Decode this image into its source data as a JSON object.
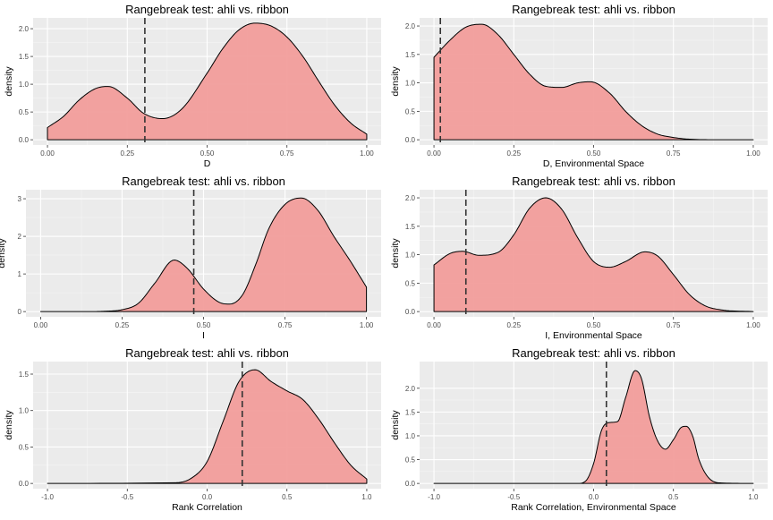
{
  "chart_data": [
    {
      "type": "area",
      "title": "Rangebreak test: ahli vs. ribbon",
      "xlabel": "D",
      "ylabel": "density",
      "xlim": [
        0,
        1
      ],
      "ylim": [
        0,
        2.1
      ],
      "xticks": [
        0,
        0.25,
        0.5,
        0.75,
        1
      ],
      "xtick_labels": [
        "0.00",
        "0.25",
        "0.50",
        "0.75",
        "1.00"
      ],
      "yticks": [
        0,
        0.5,
        1,
        1.5,
        2
      ],
      "ytick_labels": [
        "0.0",
        "0.5",
        "1.0",
        "1.5",
        "2.0"
      ],
      "grid": true,
      "fill_color": "#f29a98",
      "observed_line_x": 0.305,
      "x": [
        0,
        0.05,
        0.1,
        0.15,
        0.19,
        0.25,
        0.3,
        0.36,
        0.42,
        0.5,
        0.55,
        0.6,
        0.65,
        0.7,
        0.75,
        0.8,
        0.85,
        0.9,
        0.95,
        1
      ],
      "density": [
        0.22,
        0.42,
        0.72,
        0.92,
        0.96,
        0.75,
        0.48,
        0.38,
        0.55,
        1.2,
        1.65,
        1.98,
        2.1,
        2.05,
        1.85,
        1.5,
        1.05,
        0.62,
        0.3,
        0.1
      ]
    },
    {
      "type": "area",
      "title": "Rangebreak test: ahli vs. ribbon",
      "xlabel": "D, Environmental Space",
      "ylabel": "density",
      "xlim": [
        0,
        1
      ],
      "ylim": [
        0,
        2.05
      ],
      "xticks": [
        0,
        0.25,
        0.5,
        0.75,
        1
      ],
      "xtick_labels": [
        "0.00",
        "0.25",
        "0.50",
        "0.75",
        "1.00"
      ],
      "yticks": [
        0,
        0.5,
        1,
        1.5,
        2
      ],
      "ytick_labels": [
        "0.0",
        "0.5",
        "1.0",
        "1.5",
        "2.0"
      ],
      "grid": true,
      "fill_color": "#f29a98",
      "observed_line_x": 0.02,
      "x": [
        0,
        0.05,
        0.1,
        0.15,
        0.2,
        0.25,
        0.3,
        0.35,
        0.4,
        0.45,
        0.49,
        0.55,
        0.6,
        0.65,
        0.7,
        0.75,
        0.8,
        0.9,
        1
      ],
      "density": [
        1.45,
        1.75,
        1.98,
        2.03,
        1.85,
        1.5,
        1.15,
        0.94,
        0.92,
        1.0,
        1.02,
        0.82,
        0.5,
        0.25,
        0.1,
        0.04,
        0.01,
        0.0,
        0.0
      ]
    },
    {
      "type": "area",
      "title": "Rangebreak test: ahli vs. ribbon",
      "xlabel": "I",
      "ylabel": "density",
      "xlim": [
        0,
        1
      ],
      "ylim": [
        0,
        3.1
      ],
      "xticks": [
        0,
        0.25,
        0.5,
        0.75,
        1
      ],
      "xtick_labels": [
        "0.00",
        "0.25",
        "0.50",
        "0.75",
        "1.00"
      ],
      "yticks": [
        0,
        1,
        2,
        3
      ],
      "ytick_labels": [
        "0",
        "1",
        "2",
        "3"
      ],
      "grid": true,
      "fill_color": "#f29a98",
      "observed_line_x": 0.47,
      "x": [
        0,
        0.15,
        0.2,
        0.25,
        0.3,
        0.35,
        0.41,
        0.45,
        0.5,
        0.55,
        0.58,
        0.62,
        0.66,
        0.7,
        0.75,
        0.8,
        0.85,
        0.9,
        0.95,
        1
      ],
      "density": [
        0.0,
        0.0,
        0.01,
        0.05,
        0.22,
        0.75,
        1.37,
        1.15,
        0.6,
        0.24,
        0.2,
        0.45,
        1.25,
        2.2,
        2.85,
        3.02,
        2.7,
        2.0,
        1.35,
        0.65
      ]
    },
    {
      "type": "area",
      "title": "Rangebreak test: ahli vs. ribbon",
      "xlabel": "I, Environmental Space",
      "ylabel": "density",
      "xlim": [
        0,
        1
      ],
      "ylim": [
        0,
        2.05
      ],
      "xticks": [
        0,
        0.25,
        0.5,
        0.75,
        1
      ],
      "xtick_labels": [
        "0.00",
        "0.25",
        "0.50",
        "0.75",
        "1.00"
      ],
      "yticks": [
        0,
        0.5,
        1,
        1.5,
        2
      ],
      "ytick_labels": [
        "0.0",
        "0.5",
        "1.0",
        "1.5",
        "2.0"
      ],
      "grid": true,
      "fill_color": "#f29a98",
      "observed_line_x": 0.1,
      "x": [
        0,
        0.05,
        0.09,
        0.14,
        0.2,
        0.25,
        0.3,
        0.35,
        0.4,
        0.45,
        0.5,
        0.55,
        0.6,
        0.66,
        0.7,
        0.75,
        0.8,
        0.85,
        0.9,
        1
      ],
      "density": [
        0.82,
        1.02,
        1.06,
        0.99,
        1.04,
        1.35,
        1.82,
        2.0,
        1.8,
        1.3,
        0.88,
        0.78,
        0.88,
        1.05,
        0.98,
        0.65,
        0.3,
        0.1,
        0.03,
        0.0
      ]
    },
    {
      "type": "area",
      "title": "Rangebreak test: ahli vs. ribbon",
      "xlabel": "Rank Correlation",
      "ylabel": "density",
      "xlim": [
        -1,
        1
      ],
      "ylim": [
        0,
        1.6
      ],
      "xticks": [
        -1,
        -0.5,
        0,
        0.5,
        1
      ],
      "xtick_labels": [
        "-1.0",
        "-0.5",
        "0.0",
        "0.5",
        "1.0"
      ],
      "yticks": [
        0,
        0.5,
        1,
        1.5
      ],
      "ytick_labels": [
        "0.0",
        "0.5",
        "1.0",
        "1.5"
      ],
      "grid": true,
      "fill_color": "#f29a98",
      "observed_line_x": 0.22,
      "x": [
        -1,
        -0.2,
        -0.1,
        0,
        0.1,
        0.2,
        0.3,
        0.4,
        0.5,
        0.6,
        0.7,
        0.8,
        0.9,
        1
      ],
      "density": [
        0.0,
        0.01,
        0.07,
        0.3,
        0.85,
        1.4,
        1.56,
        1.4,
        1.27,
        1.15,
        0.88,
        0.55,
        0.25,
        0.06
      ]
    },
    {
      "type": "area",
      "title": "Rangebreak test: ahli vs. ribbon",
      "xlabel": "Rank Correlation, Environmental Space",
      "ylabel": "density",
      "xlim": [
        -1,
        1
      ],
      "ylim": [
        0,
        2.45
      ],
      "xticks": [
        -1,
        -0.5,
        0,
        0.5,
        1
      ],
      "xtick_labels": [
        "-1.0",
        "-0.5",
        "0.0",
        "0.5",
        "1.0"
      ],
      "yticks": [
        0,
        0.5,
        1,
        1.5,
        2
      ],
      "ytick_labels": [
        "0.0",
        "0.5",
        "1.0",
        "1.5",
        "2.0"
      ],
      "grid": true,
      "fill_color": "#f29a98",
      "observed_line_x": 0.08,
      "x": [
        -1,
        -0.1,
        -0.05,
        0,
        0.05,
        0.1,
        0.15,
        0.2,
        0.26,
        0.3,
        0.35,
        0.4,
        0.45,
        0.5,
        0.55,
        0.58,
        0.62,
        0.66,
        0.72,
        0.8,
        1
      ],
      "density": [
        0.0,
        0.0,
        0.05,
        0.42,
        1.12,
        1.28,
        1.3,
        1.8,
        2.37,
        2.2,
        1.4,
        0.9,
        0.72,
        0.92,
        1.18,
        1.2,
        1.0,
        0.5,
        0.12,
        0.01,
        0.0
      ]
    }
  ]
}
